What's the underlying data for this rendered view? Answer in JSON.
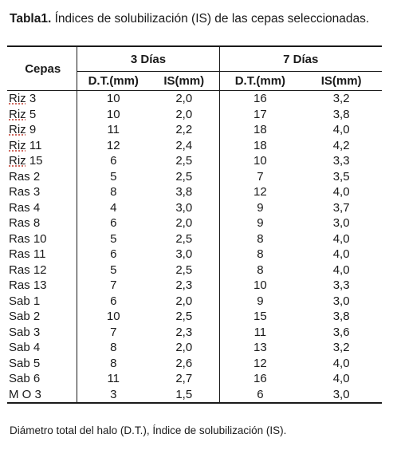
{
  "caption": {
    "label": "Tabla1.",
    "text": " Índices de solubilización (IS) de las cepas seleccionadas."
  },
  "table": {
    "headers": {
      "cepas": "Cepas",
      "group1": "3 Días",
      "group2": "7 Días",
      "dt1": "D.T.(mm)",
      "is1": "IS(mm)",
      "dt2": "D.T.(mm)",
      "is2": "IS(mm)"
    },
    "rows": [
      [
        "Riz 3",
        "10",
        "2,0",
        "16",
        "3,2"
      ],
      [
        "Riz 5",
        "10",
        "2,0",
        "17",
        "3,8"
      ],
      [
        "Riz 9",
        "11",
        "2,2",
        "18",
        "4,0"
      ],
      [
        "Riz 11",
        "12",
        "2,4",
        "18",
        "4,2"
      ],
      [
        "Riz 15",
        "6",
        "2,5",
        "10",
        "3,3"
      ],
      [
        "Ras 2",
        "5",
        "2,5",
        "7",
        "3,5"
      ],
      [
        "Ras 3",
        "8",
        "3,8",
        "12",
        "4,0"
      ],
      [
        "Ras 4",
        "4",
        "3,0",
        "9",
        "3,7"
      ],
      [
        "Ras 8",
        "6",
        "2,0",
        "9",
        "3,0"
      ],
      [
        "Ras 10",
        "5",
        "2,5",
        "8",
        "4,0"
      ],
      [
        "Ras 11",
        "6",
        "3,0",
        "8",
        "4,0"
      ],
      [
        "Ras 12",
        "5",
        "2,5",
        "8",
        "4,0"
      ],
      [
        "Ras 13",
        "7",
        "2,3",
        "10",
        "3,3"
      ],
      [
        "Sab 1",
        "6",
        "2,0",
        "9",
        "3,0"
      ],
      [
        "Sab 2",
        "10",
        "2,5",
        "15",
        "3,8"
      ],
      [
        "Sab 3",
        "7",
        "2,3",
        "11",
        "3,6"
      ],
      [
        "Sab 4",
        "8",
        "2,0",
        "13",
        "3,2"
      ],
      [
        "Sab 5",
        "8",
        "2,6",
        "12",
        "4,0"
      ],
      [
        "Sab 6",
        "11",
        "2,7",
        "16",
        "4,0"
      ],
      [
        "M O 3",
        "3",
        "1,5",
        "6",
        "3,0"
      ]
    ]
  },
  "footnote": "Diámetro total del halo (D.T.), Índice de solubilización (IS)."
}
